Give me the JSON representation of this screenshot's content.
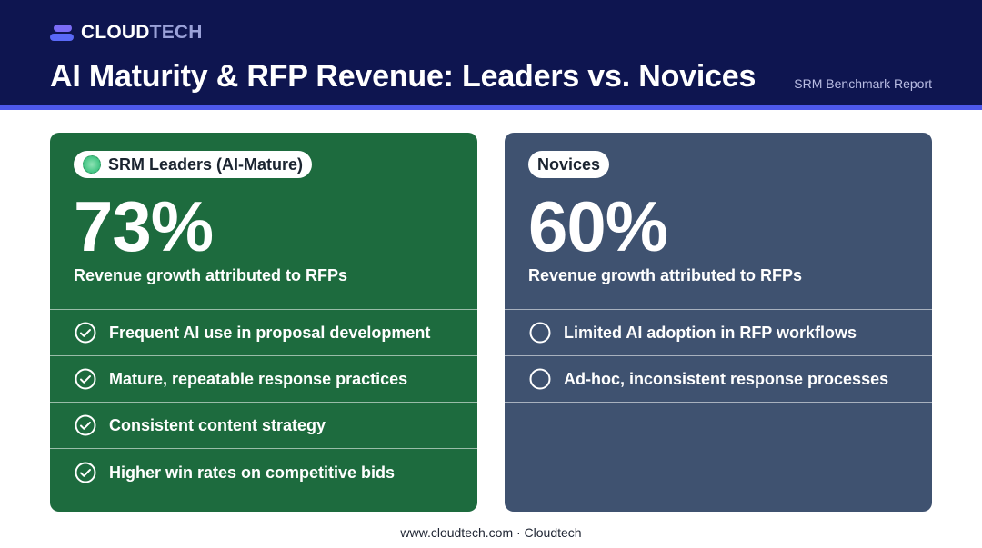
{
  "header": {
    "logo": {
      "part1": "CLOUD",
      "part2": "TECH"
    },
    "title": "AI Maturity & RFP Revenue: Leaders vs. Novices",
    "report_tag": "SRM Benchmark Report"
  },
  "leaders": {
    "pill_label": "SRM Leaders (AI-Mature)",
    "value": "73%",
    "subtitle": "Revenue growth attributed to RFPs",
    "items": [
      "Frequent AI use in proposal development",
      "Mature, repeatable response practices",
      "Consistent content strategy",
      "Higher win rates on competitive bids"
    ]
  },
  "novices": {
    "pill_label": "Novices",
    "value": "60%",
    "subtitle": "Revenue growth attributed to RFPs",
    "items": [
      "Limited AI adoption in RFP workflows",
      "Ad-hoc, inconsistent response processes"
    ]
  },
  "footer": {
    "text": "www.cloudtech.com · Cloudtech"
  },
  "colors": {
    "header_bg": "#0e1550",
    "accent": "#4d58ea",
    "leaders_bg": "#1d6b3e",
    "novices_bg": "#3f5270"
  },
  "icons": {
    "leaders_item": "check-circle-icon",
    "novices_item": "empty-circle-icon"
  }
}
